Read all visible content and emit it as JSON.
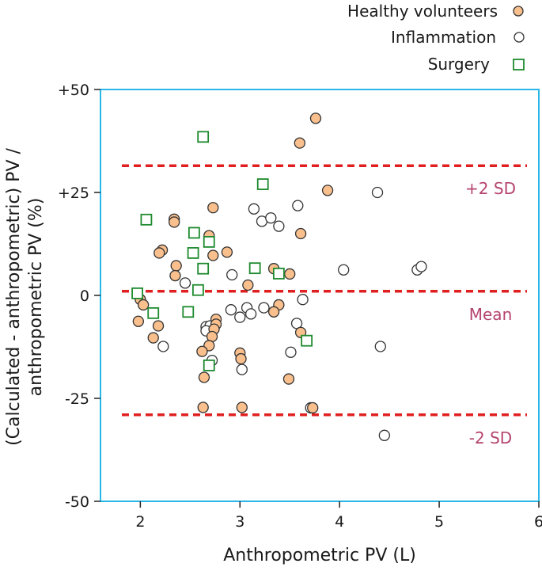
{
  "chart_data": {
    "type": "scatter",
    "xlabel": "Anthropometric PV (L)",
    "ylabel_line1": "(Calculated - anthropometric) PV /",
    "ylabel_line2": "anthropometric PV (%)",
    "xlim": [
      1.6,
      6
    ],
    "ylim": [
      -50,
      50
    ],
    "x_ticks": [
      2,
      3,
      4,
      5,
      6
    ],
    "x_tick_labels": [
      "2",
      "3",
      "4",
      "5",
      "6"
    ],
    "y_ticks": [
      50,
      25,
      0,
      -25,
      -50
    ],
    "y_tick_labels": [
      "+50",
      "+25",
      "0",
      "-25",
      "-50"
    ],
    "reference_lines": [
      {
        "name": "plus-2sd",
        "label": "+2 SD",
        "y": 31.5
      },
      {
        "name": "mean",
        "label": "Mean",
        "y": 1
      },
      {
        "name": "minus-2sd",
        "label": "-2 SD",
        "y": -29
      }
    ],
    "series": [
      {
        "name": "Healthy volunteers",
        "marker": "circle",
        "fill": "#f9c08e",
        "stroke": "#333333",
        "points": [
          [
            3.76,
            43
          ],
          [
            3.6,
            37
          ],
          [
            3.88,
            25.5
          ],
          [
            2.73,
            21.3
          ],
          [
            2.34,
            18.5
          ],
          [
            2.34,
            17.8
          ],
          [
            3.61,
            15
          ],
          [
            2.69,
            14.5
          ],
          [
            2.22,
            11
          ],
          [
            2.19,
            10.3
          ],
          [
            2.87,
            10.5
          ],
          [
            2.73,
            9.7
          ],
          [
            2.36,
            7.2
          ],
          [
            3.34,
            6.5
          ],
          [
            3.5,
            5.2
          ],
          [
            2.35,
            4.8
          ],
          [
            3.08,
            2.5
          ],
          [
            2.0,
            -1
          ],
          [
            2.03,
            -2.3
          ],
          [
            3.39,
            -2.3
          ],
          [
            3.34,
            -4
          ],
          [
            1.98,
            -6.3
          ],
          [
            2.76,
            -5.8
          ],
          [
            2.76,
            -7
          ],
          [
            3.61,
            -9
          ],
          [
            2.18,
            -7.4
          ],
          [
            2.74,
            -8.2
          ],
          [
            2.72,
            -10
          ],
          [
            2.13,
            -10.3
          ],
          [
            2.69,
            -12.2
          ],
          [
            2.62,
            -13.6
          ],
          [
            3.0,
            -14
          ],
          [
            3.01,
            -15.4
          ],
          [
            2.64,
            -19.9
          ],
          [
            3.49,
            -20.3
          ],
          [
            2.63,
            -27.2
          ],
          [
            3.02,
            -27.2
          ],
          [
            3.73,
            -27.3
          ]
        ]
      },
      {
        "name": "Inflammation",
        "marker": "circle",
        "fill": "#ffffff",
        "stroke": "#333333",
        "points": [
          [
            4.38,
            25
          ],
          [
            3.58,
            21.8
          ],
          [
            3.14,
            21
          ],
          [
            3.22,
            18
          ],
          [
            3.31,
            18.8
          ],
          [
            3.39,
            16.8
          ],
          [
            4.04,
            6.2
          ],
          [
            4.78,
            6.2
          ],
          [
            4.82,
            7
          ],
          [
            2.92,
            5
          ],
          [
            2.45,
            3
          ],
          [
            3.63,
            -1
          ],
          [
            3.24,
            -3
          ],
          [
            3.07,
            -3
          ],
          [
            2.91,
            -3.5
          ],
          [
            3.11,
            -4.5
          ],
          [
            3.0,
            -5.3
          ],
          [
            3.57,
            -6.8
          ],
          [
            2.66,
            -7.6
          ],
          [
            2.7,
            -7.4
          ],
          [
            2.66,
            -8.6
          ],
          [
            2.23,
            -12.4
          ],
          [
            4.41,
            -12.4
          ],
          [
            3.51,
            -13.8
          ],
          [
            2.72,
            -15.8
          ],
          [
            3.02,
            -18
          ],
          [
            3.71,
            -27.3
          ],
          [
            4.45,
            -34
          ]
        ]
      },
      {
        "name": "Surgery",
        "marker": "square",
        "fill": "#ffffff",
        "stroke": "#1e8a2e",
        "points": [
          [
            2.63,
            38.5
          ],
          [
            3.23,
            27
          ],
          [
            2.06,
            18.4
          ],
          [
            2.54,
            15.2
          ],
          [
            2.69,
            13
          ],
          [
            2.53,
            10.3
          ],
          [
            2.63,
            6.5
          ],
          [
            3.15,
            6.6
          ],
          [
            3.39,
            5.3
          ],
          [
            2.58,
            1.3
          ],
          [
            1.97,
            0.5
          ],
          [
            2.13,
            -4.3
          ],
          [
            2.48,
            -4
          ],
          [
            3.67,
            -11
          ],
          [
            2.69,
            -17
          ]
        ]
      }
    ]
  }
}
